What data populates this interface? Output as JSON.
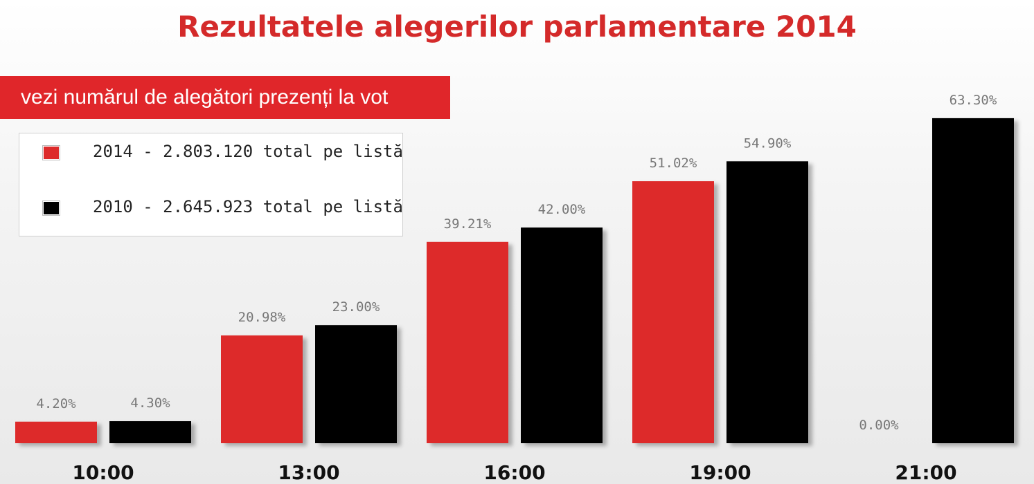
{
  "title": "Rezultatele alegerilor parlamentare 2014",
  "cta_label": "vezi numărul de alegători prezenți la vot",
  "chart_data": {
    "type": "bar",
    "title": "Rezultatele alegerilor parlamentare 2014",
    "categories": [
      "10:00",
      "13:00",
      "16:00",
      "19:00",
      "21:00"
    ],
    "series": [
      {
        "name": "2014 - 2.803.120 total pe listă",
        "color": "#dd2a2a",
        "values": [
          4.2,
          20.98,
          39.21,
          51.02,
          0.0
        ],
        "labels": [
          "4.20%",
          "20.98%",
          "39.21%",
          "51.02%",
          "0.00%"
        ]
      },
      {
        "name": "2010 - 2.645.923 total pe listă",
        "color": "#000000",
        "values": [
          4.3,
          23.0,
          42.0,
          54.9,
          63.3
        ],
        "labels": [
          "4.30%",
          "23.00%",
          "42.00%",
          "54.90%",
          "63.30%"
        ]
      }
    ],
    "xlabel": "",
    "ylabel": "",
    "ylim": [
      0,
      68
    ],
    "grid": false,
    "legend_position": "top-left"
  }
}
